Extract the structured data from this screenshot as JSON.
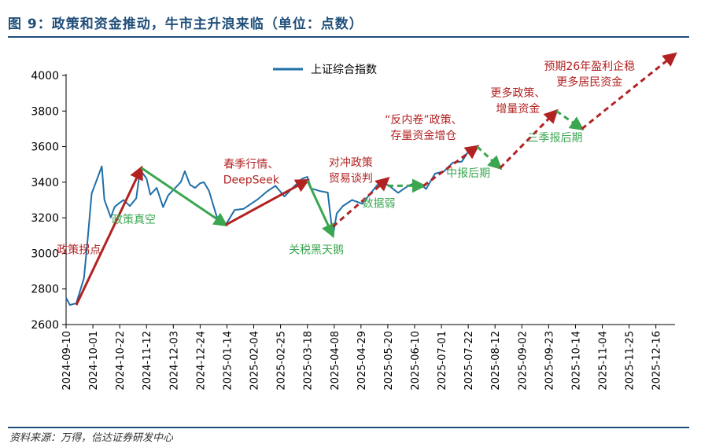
{
  "title": "图 9：政策和资金推动，牛市主升浪来临（单位：点数）",
  "source": "资料来源：万得，信达证券研发中心",
  "colors": {
    "title": "#1f4e79",
    "line": "#1f6fa8",
    "red": "#b22222",
    "green": "#3aa650",
    "axis": "#000000"
  },
  "chart_data": {
    "type": "line",
    "series": [
      {
        "name": "上证综合指数",
        "x": [
          "2024-09-10",
          "2024-09-13",
          "2024-09-18",
          "2024-09-24",
          "2024-09-27",
          "2024-09-30",
          "2024-10-08",
          "2024-10-10",
          "2024-10-15",
          "2024-10-18",
          "2024-10-22",
          "2024-10-25",
          "2024-10-30",
          "2024-11-04",
          "2024-11-07",
          "2024-11-12",
          "2024-11-15",
          "2024-11-20",
          "2024-11-25",
          "2024-11-29",
          "2024-12-04",
          "2024-12-09",
          "2024-12-12",
          "2024-12-16",
          "2024-12-20",
          "2024-12-24",
          "2024-12-27",
          "2024-12-31",
          "2025-01-06",
          "2025-01-13",
          "2025-01-20",
          "2025-01-27",
          "2025-02-07",
          "2025-02-14",
          "2025-02-21",
          "2025-02-28",
          "2025-03-07",
          "2025-03-14",
          "2025-03-18",
          "2025-03-21",
          "2025-03-28",
          "2025-04-03",
          "2025-04-07",
          "2025-04-10",
          "2025-04-15",
          "2025-04-22",
          "2025-04-30",
          "2025-05-07",
          "2025-05-14",
          "2025-05-21",
          "2025-05-28",
          "2025-06-05",
          "2025-06-12",
          "2025-06-19",
          "2025-06-26",
          "2025-07-03",
          "2025-07-10",
          "2025-07-17",
          "2025-07-23"
        ],
        "values": [
          2750,
          2710,
          2720,
          2860,
          3087,
          3336,
          3489,
          3301,
          3202,
          3261,
          3285,
          3300,
          3266,
          3310,
          3470,
          3421,
          3330,
          3368,
          3260,
          3326,
          3364,
          3402,
          3462,
          3386,
          3368,
          3394,
          3400,
          3351,
          3206,
          3160,
          3244,
          3250,
          3303,
          3346,
          3380,
          3320,
          3372,
          3420,
          3430,
          3365,
          3350,
          3342,
          3096,
          3224,
          3267,
          3300,
          3279,
          3342,
          3404,
          3381,
          3340,
          3380,
          3402,
          3362,
          3448,
          3461,
          3510,
          3516,
          3582
        ]
      }
    ],
    "xticks": [
      "2024-09-10",
      "2024-10-01",
      "2024-10-22",
      "2024-11-12",
      "2024-12-03",
      "2024-12-24",
      "2025-01-14",
      "2025-02-04",
      "2025-02-25",
      "2025-03-18",
      "2025-04-08",
      "2025-04-29",
      "2025-05-20",
      "2025-06-10",
      "2025-07-01",
      "2025-07-22",
      "2025-08-12",
      "2025-09-02",
      "2025-09-23",
      "2025-10-14",
      "2025-11-04",
      "2025-11-25",
      "2025-12-16"
    ],
    "xlim": [
      "2024-09-10",
      "2025-12-31"
    ],
    "yticks": [
      2600,
      2800,
      3000,
      3200,
      3400,
      3600,
      3800,
      4000
    ],
    "ylim": [
      2600,
      4000
    ],
    "legend_position": "top-left",
    "arrows": [
      {
        "color": "red",
        "style": "solid",
        "from": [
          "2024-09-18",
          2710
        ],
        "to": [
          "2024-11-08",
          3480
        ]
      },
      {
        "color": "green",
        "style": "solid",
        "from": [
          "2024-11-08",
          3480
        ],
        "to": [
          "2025-01-13",
          3160
        ]
      },
      {
        "color": "red",
        "style": "solid",
        "from": [
          "2025-01-13",
          3160
        ],
        "to": [
          "2025-03-18",
          3410
        ]
      },
      {
        "color": "green",
        "style": "solid",
        "from": [
          "2025-03-18",
          3410
        ],
        "to": [
          "2025-04-07",
          3100
        ]
      },
      {
        "color": "red",
        "style": "dashed",
        "from": [
          "2025-04-07",
          3150
        ],
        "to": [
          "2025-05-20",
          3420
        ]
      },
      {
        "color": "green",
        "style": "dashed",
        "from": [
          "2025-05-20",
          3380
        ],
        "to": [
          "2025-06-17",
          3380
        ]
      },
      {
        "color": "red",
        "style": "dashed",
        "from": [
          "2025-06-17",
          3380
        ],
        "to": [
          "2025-07-29",
          3600
        ]
      },
      {
        "color": "green",
        "style": "dashed",
        "from": [
          "2025-07-29",
          3600
        ],
        "to": [
          "2025-08-16",
          3480
        ]
      },
      {
        "color": "red",
        "style": "dashed",
        "from": [
          "2025-08-16",
          3480
        ],
        "to": [
          "2025-09-29",
          3800
        ]
      },
      {
        "color": "green",
        "style": "dashed",
        "from": [
          "2025-09-29",
          3800
        ],
        "to": [
          "2025-10-19",
          3700
        ]
      },
      {
        "color": "red",
        "style": "dashed",
        "from": [
          "2025-10-19",
          3700
        ],
        "to": [
          "2025-12-31",
          4120
        ]
      }
    ],
    "annotations": [
      {
        "lines": [
          "政策拐点"
        ],
        "color": "red",
        "at": [
          "2024-09-20",
          3000
        ]
      },
      {
        "lines": [
          "政策真空"
        ],
        "color": "green",
        "at": [
          "2024-11-02",
          3170
        ]
      },
      {
        "lines": [
          "春季行情、",
          "DeepSeek"
        ],
        "color": "red",
        "at": [
          "2025-02-02",
          3480
        ]
      },
      {
        "lines": [
          "关税黑天鹅"
        ],
        "color": "green",
        "at": [
          "2025-03-25",
          3000
        ]
      },
      {
        "lines": [
          "对冲政策",
          "贸易谈判"
        ],
        "color": "red",
        "at": [
          "2025-04-21",
          3490
        ]
      },
      {
        "lines": [
          "数据弱"
        ],
        "color": "green",
        "at": [
          "2025-05-13",
          3260
        ]
      },
      {
        "lines": [
          "“反内卷”政策、",
          "存量资金增仓"
        ],
        "color": "red",
        "at": [
          "2025-06-17",
          3730
        ]
      },
      {
        "lines": [
          "中报后期"
        ],
        "color": "green",
        "at": [
          "2025-07-22",
          3430
        ]
      },
      {
        "lines": [
          "更多政策、",
          "增量资金"
        ],
        "color": "red",
        "at": [
          "2025-08-30",
          3880
        ]
      },
      {
        "lines": [
          "三季报后期"
        ],
        "color": "green",
        "at": [
          "2025-09-28",
          3630
        ]
      },
      {
        "lines": [
          "预期26年盈利企稳",
          "更多居民资金"
        ],
        "color": "red",
        "at": [
          "2025-10-25",
          4030
        ]
      }
    ]
  }
}
